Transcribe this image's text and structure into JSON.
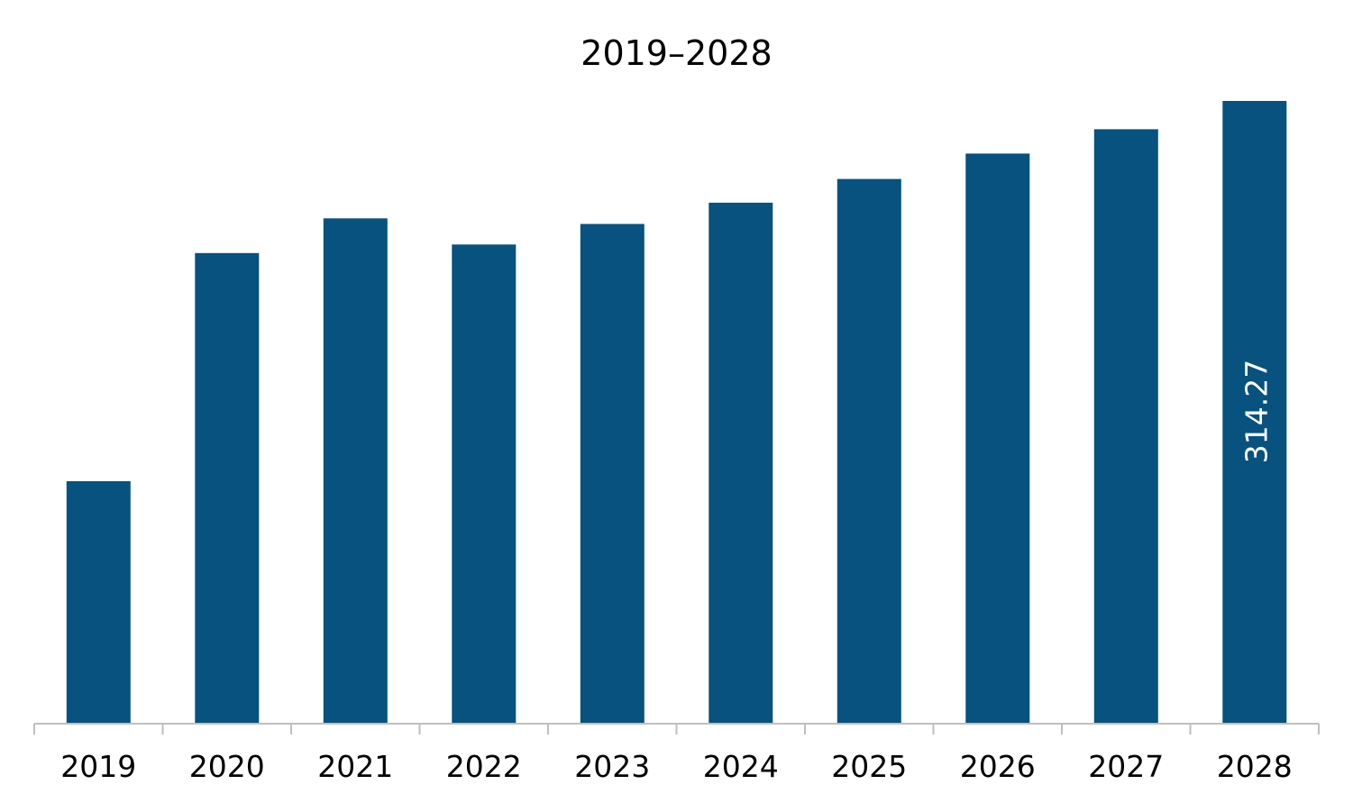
{
  "chart_data": {
    "type": "bar",
    "title": "2019–2028",
    "xlabel": "",
    "ylabel": "",
    "categories": [
      "2019",
      "2020",
      "2021",
      "2022",
      "2023",
      "2024",
      "2025",
      "2026",
      "2027",
      "2028"
    ],
    "values": [
      122.4,
      237.5,
      255.0,
      241.8,
      252.2,
      262.9,
      274.9,
      287.7,
      300.0,
      314.27
    ],
    "ylim": [
      0,
      314.27
    ],
    "grid": false,
    "legend": "none",
    "colors": {
      "bar": "#07527E",
      "axis": "#BFBFBF",
      "data_label": "#FFFFFF"
    },
    "data_labels": [
      {
        "category": "2028",
        "text": "314.27",
        "orientation": "vertical"
      }
    ]
  }
}
